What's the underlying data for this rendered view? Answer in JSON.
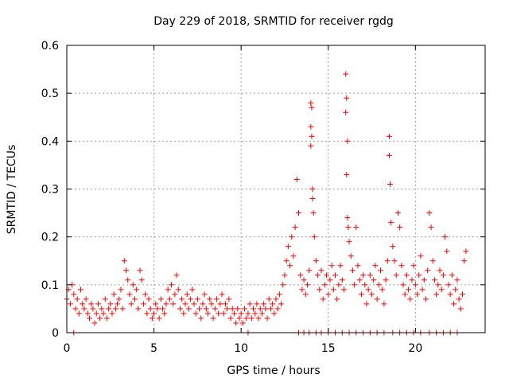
{
  "chart_data": {
    "type": "scatter",
    "title": "Day 229 of 2018, SRMTID for receiver rgdg",
    "xlabel": "GPS time / hours",
    "ylabel": "SRMTID / TECUs",
    "xlim": [
      0,
      24
    ],
    "ylim": [
      0,
      0.6
    ],
    "xticks": [
      0,
      5,
      10,
      15,
      20
    ],
    "xtick_labels": [
      "0",
      "5",
      "10",
      "15",
      "20"
    ],
    "yticks": [
      0,
      0.1,
      0.2,
      0.3,
      0.4,
      0.5,
      0.6
    ],
    "ytick_labels": [
      "0",
      "0.1",
      "0.2",
      "0.3",
      "0.4",
      "0.5",
      "0.6"
    ],
    "grid": true,
    "marker": "+",
    "color": "#ff0000",
    "series": [
      {
        "name": "SRMTID",
        "points": [
          [
            0.0,
            0.07
          ],
          [
            0.1,
            0.09
          ],
          [
            0.2,
            0.06
          ],
          [
            0.3,
            0.1
          ],
          [
            0.4,
            0.08
          ],
          [
            0.5,
            0.05
          ],
          [
            0.6,
            0.07
          ],
          [
            0.7,
            0.04
          ],
          [
            0.8,
            0.09
          ],
          [
            0.9,
            0.06
          ],
          [
            1.0,
            0.05
          ],
          [
            1.1,
            0.07
          ],
          [
            1.2,
            0.04
          ],
          [
            1.3,
            0.03
          ],
          [
            1.4,
            0.06
          ],
          [
            1.5,
            0.05
          ],
          [
            1.6,
            0.02
          ],
          [
            1.7,
            0.04
          ],
          [
            1.8,
            0.06
          ],
          [
            1.9,
            0.03
          ],
          [
            2.0,
            0.05
          ],
          [
            2.1,
            0.04
          ],
          [
            2.2,
            0.07
          ],
          [
            2.3,
            0.03
          ],
          [
            2.4,
            0.05
          ],
          [
            2.5,
            0.06
          ],
          [
            2.6,
            0.04
          ],
          [
            2.7,
            0.08
          ],
          [
            2.8,
            0.05
          ],
          [
            2.9,
            0.06
          ],
          [
            3.0,
            0.07
          ],
          [
            3.1,
            0.09
          ],
          [
            3.2,
            0.05
          ],
          [
            3.3,
            0.15
          ],
          [
            3.4,
            0.13
          ],
          [
            3.5,
            0.11
          ],
          [
            3.6,
            0.08
          ],
          [
            3.7,
            0.06
          ],
          [
            3.8,
            0.1
          ],
          [
            3.9,
            0.07
          ],
          [
            4.0,
            0.09
          ],
          [
            4.1,
            0.05
          ],
          [
            4.2,
            0.13
          ],
          [
            4.3,
            0.11
          ],
          [
            4.4,
            0.06
          ],
          [
            4.5,
            0.08
          ],
          [
            4.6,
            0.04
          ],
          [
            4.7,
            0.07
          ],
          [
            4.8,
            0.05
          ],
          [
            4.9,
            0.03
          ],
          [
            5.0,
            0.04
          ],
          [
            5.1,
            0.06
          ],
          [
            5.2,
            0.05
          ],
          [
            5.3,
            0.03
          ],
          [
            5.4,
            0.07
          ],
          [
            5.5,
            0.05
          ],
          [
            5.6,
            0.04
          ],
          [
            5.7,
            0.06
          ],
          [
            5.8,
            0.09
          ],
          [
            5.9,
            0.07
          ],
          [
            6.0,
            0.1
          ],
          [
            6.1,
            0.06
          ],
          [
            6.2,
            0.08
          ],
          [
            6.3,
            0.12
          ],
          [
            6.4,
            0.09
          ],
          [
            6.5,
            0.05
          ],
          [
            6.6,
            0.07
          ],
          [
            6.7,
            0.04
          ],
          [
            6.8,
            0.06
          ],
          [
            6.9,
            0.08
          ],
          [
            7.0,
            0.05
          ],
          [
            7.1,
            0.07
          ],
          [
            7.2,
            0.09
          ],
          [
            7.3,
            0.06
          ],
          [
            7.4,
            0.04
          ],
          [
            7.5,
            0.07
          ],
          [
            7.6,
            0.05
          ],
          [
            7.7,
            0.03
          ],
          [
            7.8,
            0.06
          ],
          [
            7.9,
            0.08
          ],
          [
            8.0,
            0.05
          ],
          [
            8.1,
            0.04
          ],
          [
            8.2,
            0.07
          ],
          [
            8.3,
            0.06
          ],
          [
            8.4,
            0.03
          ],
          [
            8.5,
            0.05
          ],
          [
            8.6,
            0.07
          ],
          [
            8.7,
            0.04
          ],
          [
            8.8,
            0.06
          ],
          [
            8.9,
            0.08
          ],
          [
            9.0,
            0.04
          ],
          [
            9.1,
            0.06
          ],
          [
            9.2,
            0.05
          ],
          [
            9.3,
            0.07
          ],
          [
            9.4,
            0.03
          ],
          [
            9.5,
            0.05
          ],
          [
            9.6,
            0.04
          ],
          [
            9.7,
            0.02
          ],
          [
            9.8,
            0.05
          ],
          [
            9.9,
            0.03
          ],
          [
            10.0,
            0.04
          ],
          [
            10.1,
            0.02
          ],
          [
            10.2,
            0.05
          ],
          [
            10.3,
            0.03
          ],
          [
            10.4,
            0.04
          ],
          [
            10.5,
            0.06
          ],
          [
            10.6,
            0.03
          ],
          [
            10.7,
            0.05
          ],
          [
            10.8,
            0.04
          ],
          [
            10.9,
            0.06
          ],
          [
            11.0,
            0.03
          ],
          [
            11.1,
            0.05
          ],
          [
            11.2,
            0.04
          ],
          [
            11.3,
            0.06
          ],
          [
            11.4,
            0.05
          ],
          [
            11.5,
            0.03
          ],
          [
            11.6,
            0.07
          ],
          [
            11.7,
            0.05
          ],
          [
            11.8,
            0.06
          ],
          [
            11.9,
            0.04
          ],
          [
            12.0,
            0.07
          ],
          [
            12.1,
            0.05
          ],
          [
            12.2,
            0.08
          ],
          [
            12.3,
            0.06
          ],
          [
            12.4,
            0.1
          ],
          [
            12.5,
            0.12
          ],
          [
            12.6,
            0.15
          ],
          [
            12.7,
            0.18
          ],
          [
            12.8,
            0.14
          ],
          [
            12.9,
            0.2
          ],
          [
            13.0,
            0.16
          ],
          [
            13.1,
            0.22
          ],
          [
            13.2,
            0.32
          ],
          [
            13.3,
            0.25
          ],
          [
            13.4,
            0.12
          ],
          [
            13.5,
            0.09
          ],
          [
            13.6,
            0.11
          ],
          [
            13.7,
            0.08
          ],
          [
            13.8,
            0.1
          ],
          [
            13.9,
            0.13
          ],
          [
            14.0,
            0.48
          ],
          [
            14.05,
            0.47
          ],
          [
            14.0,
            0.43
          ],
          [
            14.05,
            0.41
          ],
          [
            14.0,
            0.39
          ],
          [
            14.1,
            0.3
          ],
          [
            14.1,
            0.28
          ],
          [
            14.15,
            0.25
          ],
          [
            14.2,
            0.2
          ],
          [
            14.3,
            0.15
          ],
          [
            14.4,
            0.12
          ],
          [
            14.5,
            0.09
          ],
          [
            14.6,
            0.13
          ],
          [
            14.7,
            0.07
          ],
          [
            14.8,
            0.1
          ],
          [
            14.9,
            0.12
          ],
          [
            15.0,
            0.08
          ],
          [
            15.1,
            0.11
          ],
          [
            15.2,
            0.14
          ],
          [
            15.3,
            0.09
          ],
          [
            15.4,
            0.12
          ],
          [
            15.5,
            0.07
          ],
          [
            15.6,
            0.1
          ],
          [
            15.7,
            0.14
          ],
          [
            15.8,
            0.11
          ],
          [
            15.9,
            0.09
          ],
          [
            16.0,
            0.54
          ],
          [
            16.05,
            0.49
          ],
          [
            16.0,
            0.46
          ],
          [
            16.1,
            0.4
          ],
          [
            16.05,
            0.33
          ],
          [
            16.1,
            0.24
          ],
          [
            16.15,
            0.22
          ],
          [
            16.2,
            0.19
          ],
          [
            16.3,
            0.16
          ],
          [
            16.4,
            0.13
          ],
          [
            16.5,
            0.1
          ],
          [
            16.6,
            0.22
          ],
          [
            16.7,
            0.14
          ],
          [
            16.8,
            0.11
          ],
          [
            16.9,
            0.08
          ],
          [
            17.0,
            0.12
          ],
          [
            17.1,
            0.1
          ],
          [
            17.2,
            0.06
          ],
          [
            17.3,
            0.09
          ],
          [
            17.4,
            0.12
          ],
          [
            17.5,
            0.08
          ],
          [
            17.6,
            0.11
          ],
          [
            17.7,
            0.14
          ],
          [
            17.8,
            0.07
          ],
          [
            17.9,
            0.1
          ],
          [
            18.0,
            0.13
          ],
          [
            18.1,
            0.09
          ],
          [
            18.2,
            0.06
          ],
          [
            18.3,
            0.11
          ],
          [
            18.4,
            0.15
          ],
          [
            18.5,
            0.41
          ],
          [
            18.5,
            0.37
          ],
          [
            18.55,
            0.31
          ],
          [
            18.6,
            0.23
          ],
          [
            18.7,
            0.18
          ],
          [
            18.8,
            0.15
          ],
          [
            18.9,
            0.12
          ],
          [
            19.0,
            0.25
          ],
          [
            19.1,
            0.22
          ],
          [
            19.2,
            0.14
          ],
          [
            19.3,
            0.1
          ],
          [
            19.4,
            0.08
          ],
          [
            19.5,
            0.12
          ],
          [
            19.6,
            0.09
          ],
          [
            19.7,
            0.07
          ],
          [
            19.8,
            0.11
          ],
          [
            19.9,
            0.14
          ],
          [
            20.0,
            0.1
          ],
          [
            20.1,
            0.08
          ],
          [
            20.2,
            0.12
          ],
          [
            20.3,
            0.16
          ],
          [
            20.4,
            0.09
          ],
          [
            20.5,
            0.11
          ],
          [
            20.6,
            0.07
          ],
          [
            20.7,
            0.13
          ],
          [
            20.8,
            0.25
          ],
          [
            20.9,
            0.22
          ],
          [
            21.0,
            0.15
          ],
          [
            21.1,
            0.11
          ],
          [
            21.2,
            0.08
          ],
          [
            21.3,
            0.1
          ],
          [
            21.4,
            0.13
          ],
          [
            21.5,
            0.09
          ],
          [
            21.6,
            0.12
          ],
          [
            21.7,
            0.2
          ],
          [
            21.8,
            0.17
          ],
          [
            21.9,
            0.1
          ],
          [
            22.0,
            0.08
          ],
          [
            22.1,
            0.12
          ],
          [
            22.2,
            0.06
          ],
          [
            22.3,
            0.09
          ],
          [
            22.4,
            0.11
          ],
          [
            22.5,
            0.07
          ],
          [
            22.6,
            0.05
          ],
          [
            22.7,
            0.08
          ],
          [
            22.8,
            0.15
          ],
          [
            22.9,
            0.17
          ],
          [
            13.3,
            0.0
          ],
          [
            13.6,
            0.0
          ],
          [
            13.9,
            0.0
          ],
          [
            14.3,
            0.0
          ],
          [
            14.6,
            0.0
          ],
          [
            15.0,
            0.0
          ],
          [
            15.4,
            0.0
          ],
          [
            15.8,
            0.0
          ],
          [
            16.2,
            0.0
          ],
          [
            16.6,
            0.0
          ],
          [
            17.0,
            0.0
          ],
          [
            17.4,
            0.0
          ],
          [
            17.8,
            0.0
          ],
          [
            18.2,
            0.0
          ],
          [
            18.7,
            0.0
          ],
          [
            19.1,
            0.0
          ],
          [
            19.5,
            0.0
          ],
          [
            19.9,
            0.0
          ],
          [
            20.3,
            0.0
          ],
          [
            20.8,
            0.0
          ],
          [
            21.2,
            0.0
          ],
          [
            21.6,
            0.0
          ],
          [
            22.0,
            0.0
          ],
          [
            22.4,
            0.0
          ],
          [
            0.4,
            0.0
          ],
          [
            10.4,
            0.0
          ]
        ]
      }
    ]
  }
}
